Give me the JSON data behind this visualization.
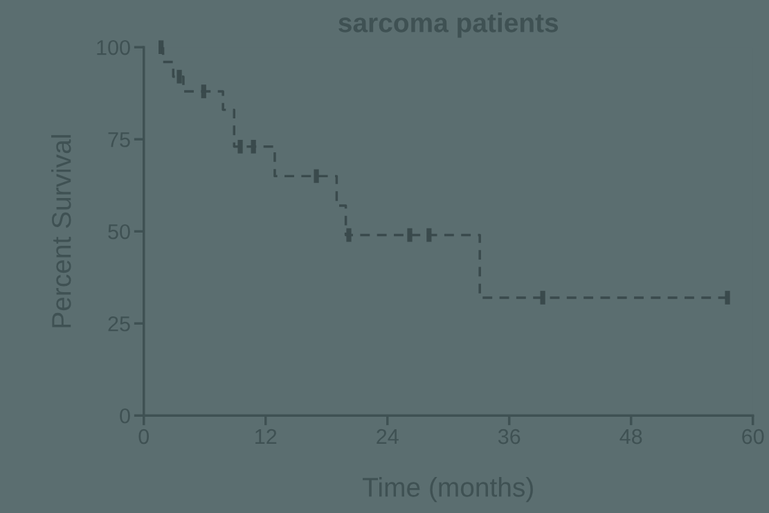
{
  "chart_data": {
    "type": "step",
    "title": "sarcoma patients",
    "xlabel": "Time (months)",
    "ylabel": "Percent Survival",
    "xlim": [
      0,
      60
    ],
    "xticks": [
      0,
      12,
      24,
      36,
      48,
      60
    ],
    "ylim": [
      0,
      100
    ],
    "yticks": [
      0,
      25,
      50,
      75,
      100
    ],
    "grid": false,
    "line_style": "dashed",
    "series": [
      {
        "type": "step",
        "color": "#3a4a4c",
        "x": [
          1.7,
          1.9,
          2.9,
          3.9,
          7.8,
          8.9,
          12.9,
          19.0,
          19.9,
          33.1,
          57.5
        ],
        "values": [
          100,
          96,
          92,
          88,
          83,
          73,
          65,
          57,
          49,
          32,
          32
        ]
      },
      {
        "type": "scatter",
        "color": "#3a4a4c",
        "x": [
          1.7,
          3.5,
          5.9,
          9.5,
          10.8,
          17.0,
          20.2,
          26.2,
          28.1,
          39.3,
          57.5
        ],
        "values": [
          100,
          92,
          88,
          73,
          73,
          65,
          49,
          49,
          49,
          32,
          32
        ]
      }
    ]
  }
}
